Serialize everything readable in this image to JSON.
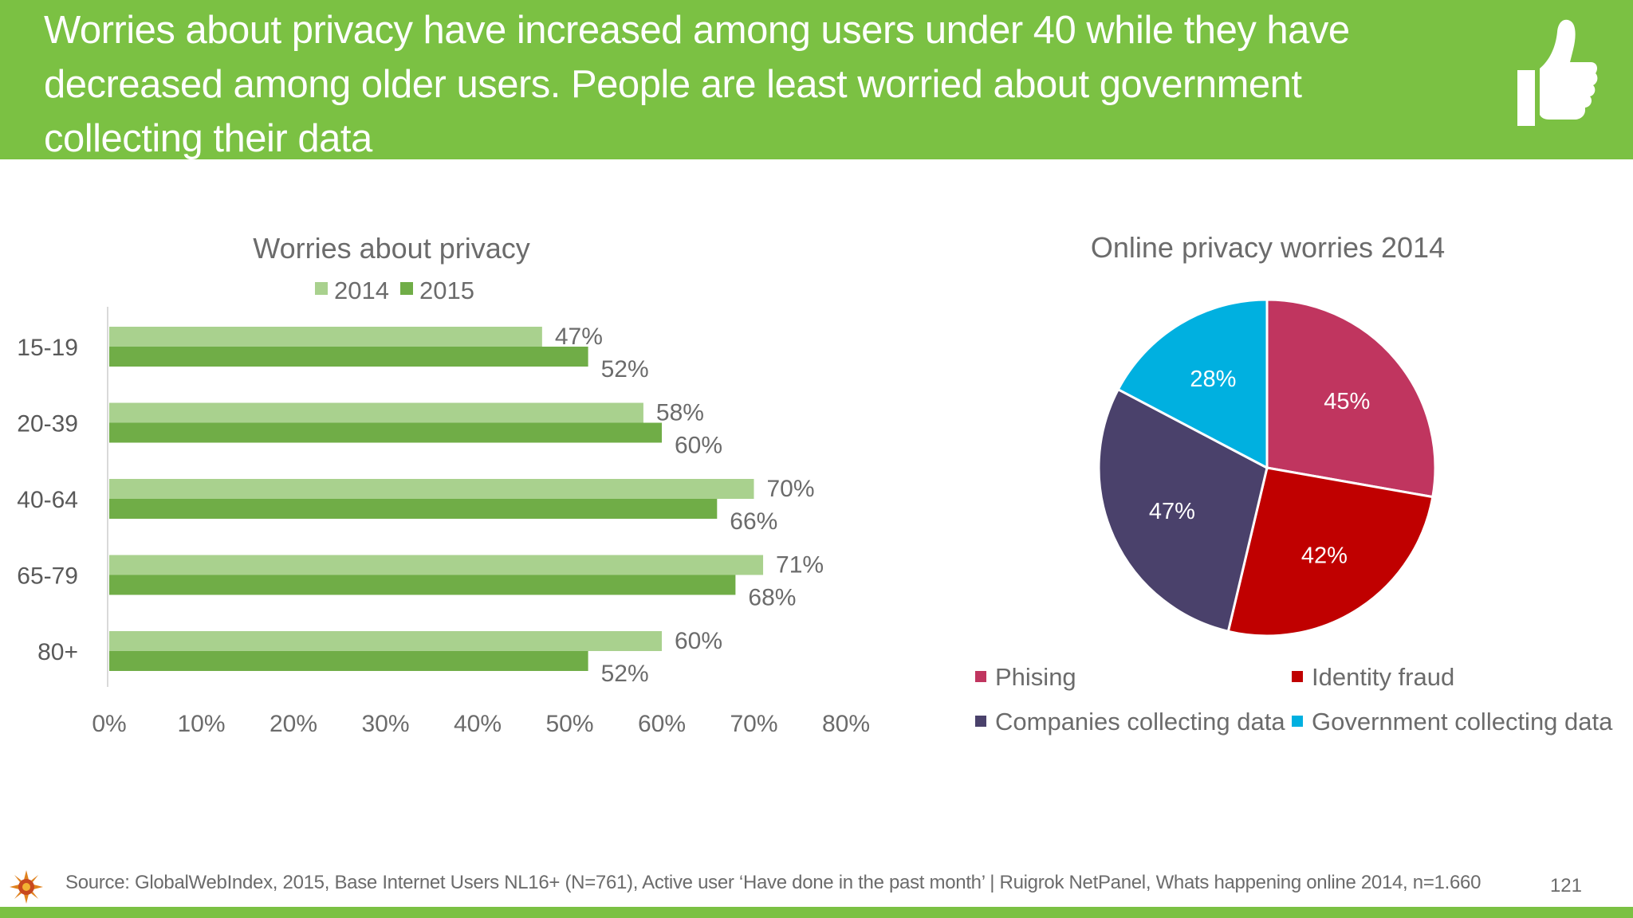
{
  "header": {
    "title": "Worries about privacy have increased among users under 40 while they have decreased among older users. People are least worried about government collecting their data",
    "icon": "thumbs-up-icon"
  },
  "colors": {
    "header_green": "#7bc143",
    "series_2014": "#a9d18e",
    "series_2015": "#70ad47",
    "phising": "#c0355f",
    "identity_fraud": "#c00000",
    "companies": "#4a416b",
    "government": "#00b0e0"
  },
  "chart_data": [
    {
      "type": "bar",
      "orientation": "horizontal",
      "title": "Worries about privacy",
      "categories": [
        "15-19",
        "20-39",
        "40-64",
        "65-79",
        "80+"
      ],
      "series": [
        {
          "name": "2014",
          "values": [
            47,
            58,
            70,
            71,
            60
          ]
        },
        {
          "name": "2015",
          "values": [
            52,
            60,
            66,
            68,
            52
          ]
        }
      ],
      "value_labels": {
        "2014": [
          "47%",
          "58%",
          "70%",
          "71%",
          "60%"
        ],
        "2015": [
          "52%",
          "60%",
          "66%",
          "68%",
          "52%"
        ]
      },
      "xlim": [
        0,
        80
      ],
      "xticks": [
        "0%",
        "10%",
        "20%",
        "30%",
        "40%",
        "50%",
        "60%",
        "70%",
        "80%"
      ],
      "legend": "top",
      "grid": false
    },
    {
      "type": "pie",
      "title": "Online privacy worries 2014",
      "slices": [
        {
          "label": "Phising",
          "value": 45,
          "display": "45%"
        },
        {
          "label": "Identity fraud",
          "value": 42,
          "display": "42%"
        },
        {
          "label": "Companies collecting data",
          "value": 47,
          "display": "47%"
        },
        {
          "label": "Government collecting data",
          "value": 28,
          "display": "28%"
        }
      ],
      "legend": "bottom"
    }
  ],
  "footer": {
    "source": "Source: GlobalWebIndex, 2015, Base Internet Users NL16+ (N=761), Active user ‘Have done in the past month’ | Ruigrok NetPanel, Whats happening online 2014, n=1.660",
    "page_number": "121",
    "logo": "sun-logo-icon"
  }
}
